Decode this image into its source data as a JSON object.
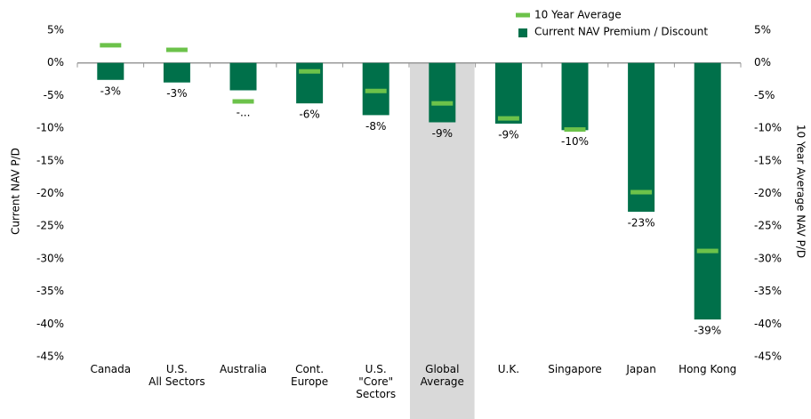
{
  "chart_data": {
    "type": "bar",
    "y_label": "Current NAV P/D",
    "y2_label": "10 Year Average NAV P/D",
    "categories": [
      "Canada",
      "U.S.\nAll Sectors",
      "Australia",
      "Cont.\nEurope",
      "U.S.\n\"Core\"\nSectors",
      "Global\nAverage",
      "U.K.",
      "Singapore",
      "Japan",
      "Hong Kong"
    ],
    "highlight_index": 5,
    "highlight_color": "#d9d9d9",
    "series": [
      {
        "name": "Current NAV Premium / Discount",
        "color": "#00704a",
        "kind": "bar",
        "values": [
          -2.6,
          -3.0,
          -4.2,
          -6.2,
          -8.0,
          -9.1,
          -9.3,
          -10.3,
          -22.8,
          -39.3
        ],
        "value_labels": [
          "-3%",
          "-3%",
          "-...",
          "-6%",
          "-8%",
          "-9%",
          "-9%",
          "-10%",
          "-23%",
          "-39%"
        ]
      },
      {
        "name": "10 Year Average",
        "color": "#6cc24a",
        "kind": "marker",
        "axis": "y2",
        "values": [
          2.7,
          2.0,
          -5.9,
          -1.3,
          -4.3,
          -6.2,
          -8.5,
          -10.2,
          -19.8,
          -28.8
        ]
      }
    ],
    "ylim": [
      -45,
      5
    ],
    "yticks": [
      {
        "value": 5,
        "label": "5%"
      },
      {
        "value": 0,
        "label": "0%"
      },
      {
        "value": -5,
        "label": "-5%"
      },
      {
        "value": -10,
        "label": "-10%"
      },
      {
        "value": -15,
        "label": "-15%"
      },
      {
        "value": -20,
        "label": "-20%"
      },
      {
        "value": -25,
        "label": "-25%"
      },
      {
        "value": -30,
        "label": "-30%"
      },
      {
        "value": -35,
        "label": "-35%"
      },
      {
        "value": -40,
        "label": "-40%"
      },
      {
        "value": -45,
        "label": "-45%"
      }
    ],
    "y2lim": [
      -45,
      5
    ],
    "y2ticks": [
      {
        "value": 5,
        "label": "5%"
      },
      {
        "value": 0,
        "label": "0%"
      },
      {
        "value": -5,
        "label": "-5%"
      },
      {
        "value": -10,
        "label": "-10%"
      },
      {
        "value": -15,
        "label": "-15%"
      },
      {
        "value": -20,
        "label": "-20%"
      },
      {
        "value": -25,
        "label": "-25%"
      },
      {
        "value": -30,
        "label": "-30%"
      },
      {
        "value": -35,
        "label": "-35%"
      },
      {
        "value": -40,
        "label": "-40%"
      },
      {
        "value": -45,
        "label": "-45%"
      }
    ]
  }
}
